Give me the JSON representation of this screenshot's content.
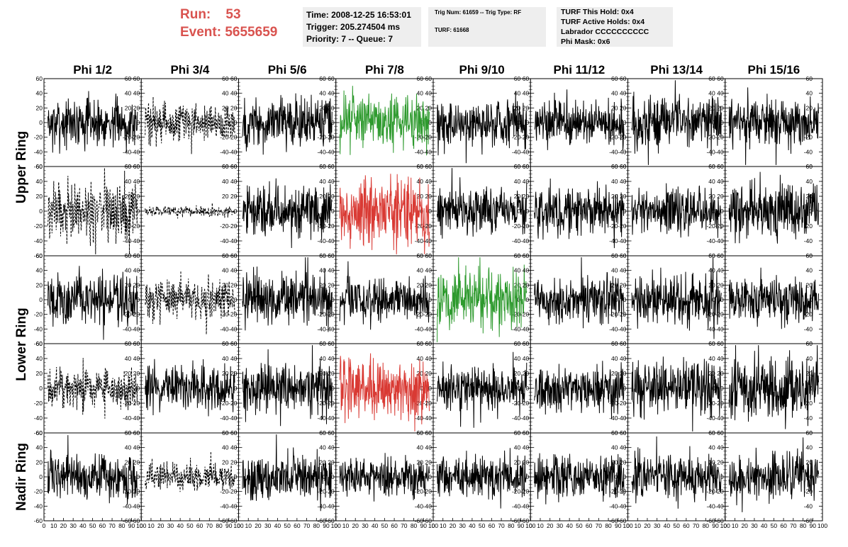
{
  "header": {
    "run_label": "Run:",
    "run_value": "53",
    "event_label": "Event:",
    "event_value": "5655659",
    "time_line": "Time: 2008-12-25 16:53:01",
    "trigger_line": "Trigger: 205.274504 ms",
    "priority_line": "Priority: 7 -- Queue: 7",
    "trig_num_line": "Trig Num: 61659 -- Trig Type: RF",
    "turf_line": "TURF: 61668",
    "turf_hold_line": "TURF This Hold: 0x4",
    "turf_active_line": "TURF Active Holds: 0x4",
    "labrador_line": "Labrador CCCCCCCCCC",
    "phi_mask_line": "Phi Mask: 0x6"
  },
  "chart_data": {
    "type": "line",
    "columns": [
      "Phi 1/2",
      "Phi 3/4",
      "Phi 5/6",
      "Phi 7/8",
      "Phi 9/10",
      "Phi 11/12",
      "Phi 13/14",
      "Phi 15/16"
    ],
    "rings": [
      {
        "name": "Upper Ring",
        "rows": 2
      },
      {
        "name": "Lower Ring",
        "rows": 2
      },
      {
        "name": "Nadir Ring",
        "rows": 1
      }
    ],
    "x_range": [
      0,
      100
    ],
    "y_range": [
      -60,
      60
    ],
    "y_ticks": [
      -60,
      -40,
      -20,
      0,
      20,
      40,
      60
    ],
    "x_ticks": [
      0,
      10,
      20,
      30,
      40,
      50,
      60,
      70,
      80,
      90,
      100
    ],
    "colors": {
      "normal": "#000000",
      "triggered_green": "#2e9a2e",
      "triggered_red": "#d93a34"
    },
    "panels": [
      [
        {
          "style": "solid",
          "color": "normal",
          "amp": 16
        },
        {
          "style": "dashed",
          "color": "normal",
          "amp": 13
        },
        {
          "style": "solid",
          "color": "normal",
          "amp": 17
        },
        {
          "style": "solid",
          "color": "triggered_green",
          "amp": 17
        },
        {
          "style": "solid",
          "color": "normal",
          "amp": 17
        },
        {
          "style": "solid",
          "color": "normal",
          "amp": 15
        },
        {
          "style": "solid",
          "color": "normal",
          "amp": 17
        },
        {
          "style": "solid",
          "color": "normal",
          "amp": 16
        }
      ],
      [
        {
          "style": "dashed",
          "color": "normal",
          "amp": 20
        },
        {
          "style": "dashed",
          "color": "normal",
          "amp": 3
        },
        {
          "style": "solid",
          "color": "normal",
          "amp": 17
        },
        {
          "style": "solid",
          "color": "triggered_red",
          "amp": 22
        },
        {
          "style": "solid",
          "color": "normal",
          "amp": 14
        },
        {
          "style": "solid",
          "color": "normal",
          "amp": 16
        },
        {
          "style": "solid",
          "color": "normal",
          "amp": 16
        },
        {
          "style": "solid",
          "color": "normal",
          "amp": 17
        }
      ],
      [
        {
          "style": "solid",
          "color": "normal",
          "amp": 17
        },
        {
          "style": "dashed",
          "color": "normal",
          "amp": 14
        },
        {
          "style": "solid",
          "color": "normal",
          "amp": 17
        },
        {
          "style": "solid",
          "color": "normal",
          "amp": 15
        },
        {
          "style": "solid",
          "color": "triggered_green",
          "amp": 20
        },
        {
          "style": "solid",
          "color": "normal",
          "amp": 16
        },
        {
          "style": "solid",
          "color": "normal",
          "amp": 17
        },
        {
          "style": "solid",
          "color": "normal",
          "amp": 16
        }
      ],
      [
        {
          "style": "dashed",
          "color": "normal",
          "amp": 13
        },
        {
          "style": "solid",
          "color": "normal",
          "amp": 15
        },
        {
          "style": "solid",
          "color": "normal",
          "amp": 16
        },
        {
          "style": "solid",
          "color": "triggered_red",
          "amp": 20
        },
        {
          "style": "solid",
          "color": "normal",
          "amp": 14
        },
        {
          "style": "solid",
          "color": "normal",
          "amp": 15
        },
        {
          "style": "solid",
          "color": "normal",
          "amp": 17
        },
        {
          "style": "solid",
          "color": "normal",
          "amp": 20
        }
      ],
      [
        {
          "style": "solid",
          "color": "normal",
          "amp": 15
        },
        {
          "style": "dashed",
          "color": "normal",
          "amp": 9
        },
        {
          "style": "solid",
          "color": "normal",
          "amp": 15
        },
        {
          "style": "solid",
          "color": "normal",
          "amp": 14
        },
        {
          "style": "solid",
          "color": "normal",
          "amp": 14
        },
        {
          "style": "solid",
          "color": "normal",
          "amp": 15
        },
        {
          "style": "solid",
          "color": "normal",
          "amp": 15
        },
        {
          "style": "solid",
          "color": "normal",
          "amp": 15
        }
      ]
    ]
  }
}
